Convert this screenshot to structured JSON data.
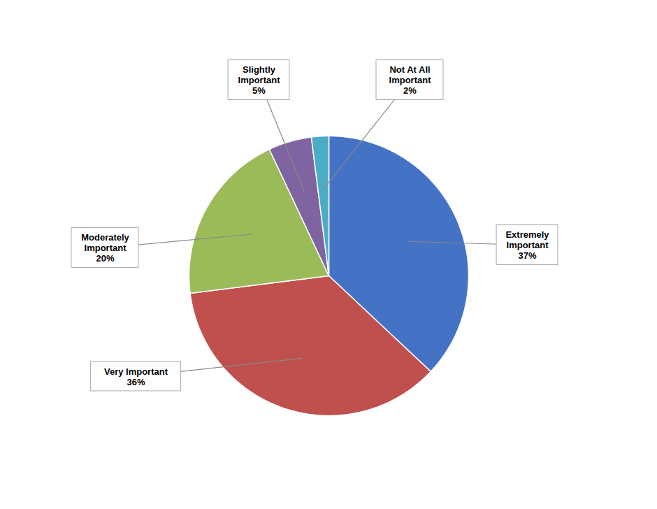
{
  "chart_data": {
    "type": "pie",
    "categories": [
      "Extremely\nImportant",
      "Very Important",
      "Moderately\nImportant",
      "Slightly\nImportant",
      "Not At All\nImportant"
    ],
    "values": [
      37,
      36,
      20,
      5,
      2
    ],
    "value_labels": [
      "37%",
      "36%",
      "20%",
      "5%",
      "2%"
    ],
    "colors": [
      "#4472C4",
      "#C0504D",
      "#9BBB59",
      "#8064A2",
      "#4BACC6"
    ],
    "data_labels": true
  }
}
